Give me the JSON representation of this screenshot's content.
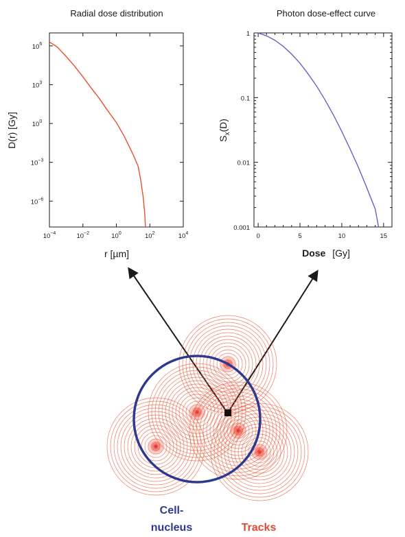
{
  "chart_data": [
    {
      "type": "line",
      "title": "Radial dose distribution",
      "xlabel": "r  [µm]",
      "ylabel": "D(r)   [Gy]",
      "x_scale": "log",
      "y_scale": "log",
      "xlim": [
        0.0001,
        10000
      ],
      "ylim": [
        1e-08,
        10000000
      ],
      "x_ticks": [
        {
          "value": 0.0001,
          "base": "10",
          "exp": "−4"
        },
        {
          "value": 0.01,
          "base": "10",
          "exp": "−2"
        },
        {
          "value": 1,
          "base": "10",
          "exp": "0"
        },
        {
          "value": 100,
          "base": "10",
          "exp": "2"
        },
        {
          "value": 10000,
          "base": "10",
          "exp": "4"
        }
      ],
      "y_ticks": [
        {
          "value": 1000000,
          "base": "10",
          "exp": "6"
        },
        {
          "value": 1000,
          "base": "10",
          "exp": "3"
        },
        {
          "value": 1,
          "base": "10",
          "exp": "0"
        },
        {
          "value": 0.001,
          "base": "10",
          "exp": "−3"
        },
        {
          "value": 1e-06,
          "base": "10",
          "exp": "−6"
        }
      ],
      "series": [
        {
          "color": "#e8502e",
          "x": [
            0.0001,
            0.0003,
            0.001,
            0.003,
            0.01,
            0.03,
            0.1,
            0.3,
            1,
            3,
            10,
            20,
            30,
            40,
            50,
            55
          ],
          "y": [
            2000000,
            800000,
            150000,
            30000,
            4000,
            600,
            80,
            10,
            1.2,
            0.1,
            0.004,
            0.0005,
            3e-05,
            2e-06,
            1e-07,
            1e-08
          ]
        }
      ]
    },
    {
      "type": "line",
      "title": "Photon dose-effect curve",
      "xlabel": "Dose",
      "xlabel_unit": "[Gy]",
      "ylabel": "S",
      "ylabel_sub": "x",
      "ylabel_suffix": "(D)",
      "x_scale": "linear",
      "y_scale": "log",
      "xlim": [
        -0.5,
        16
      ],
      "ylim": [
        0.001,
        1
      ],
      "x_ticks": [
        "0",
        "5",
        "10",
        "15"
      ],
      "y_ticks": [
        "1",
        "0.1",
        "0.01",
        "0.001"
      ],
      "series": [
        {
          "color": "#6b5fc7",
          "x": [
            0,
            1,
            2,
            3,
            4,
            5,
            6,
            7,
            8,
            9,
            10,
            11,
            12,
            13,
            14,
            14.4
          ],
          "y": [
            1,
            0.9,
            0.77,
            0.62,
            0.47,
            0.34,
            0.23,
            0.15,
            0.092,
            0.054,
            0.03,
            0.016,
            0.0083,
            0.004,
            0.0019,
            0.001
          ]
        }
      ]
    }
  ],
  "diagram": {
    "nucleus_label_line1": "Cell-",
    "nucleus_label_line2": "nucleus",
    "tracks_label": "Tracks",
    "colors": {
      "nucleus": "#2b3a8f",
      "tracks": "#e8502e",
      "track_core": "#e01818",
      "arrows": "#1a1a1a"
    }
  }
}
